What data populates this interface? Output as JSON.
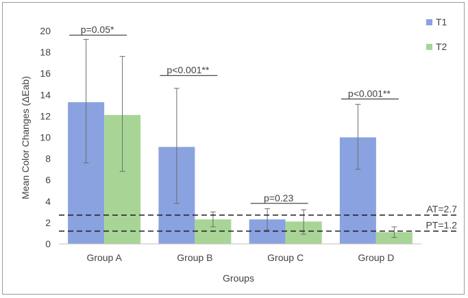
{
  "chart_data": {
    "type": "bar",
    "title": "",
    "xlabel": "Groups",
    "ylabel": "Mean Color Changes (ΔEab)",
    "ylim": [
      0,
      20
    ],
    "yticks": [
      "0",
      "2",
      "4",
      "6",
      "8",
      "10",
      "12",
      "14",
      "16",
      "18",
      "20"
    ],
    "grid": false,
    "legend_position": "right",
    "categories": [
      "Group A",
      "Group B",
      "Group C",
      "Group D"
    ],
    "series": [
      {
        "name": "T1",
        "color": "#8aa2df",
        "values": [
          13.3,
          9.1,
          2.3,
          10.0
        ],
        "error_low": [
          7.6,
          3.8,
          1.3,
          7.0
        ],
        "error_high": [
          19.2,
          14.6,
          3.3,
          13.1
        ]
      },
      {
        "name": "T2",
        "color": "#a8d596",
        "values": [
          12.1,
          2.3,
          2.1,
          1.1
        ],
        "error_low": [
          6.8,
          1.6,
          0.9,
          0.6
        ],
        "error_high": [
          17.6,
          3.0,
          3.2,
          1.6
        ]
      }
    ],
    "reference_lines": [
      {
        "label": "AT=2.7",
        "value": 2.7
      },
      {
        "label": "PT=1.2",
        "value": 1.2
      }
    ],
    "annotations": [
      {
        "group": 0,
        "text": "p=0.05*",
        "bracket_y": 19.6,
        "text_y": 19.8
      },
      {
        "group": 1,
        "text": "p<0.001**",
        "bracket_y": 15.8,
        "text_y": 16.0
      },
      {
        "group": 2,
        "text": "p=0.23",
        "bracket_y": 3.8,
        "text_y": 4.0
      },
      {
        "group": 3,
        "text": "p<0.001**",
        "bracket_y": 13.6,
        "text_y": 13.8
      }
    ]
  }
}
